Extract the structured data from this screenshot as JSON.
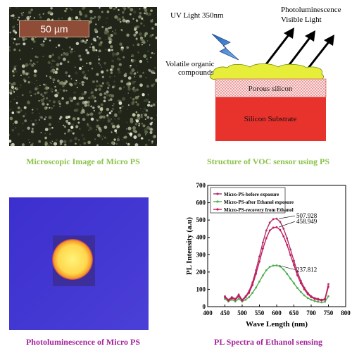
{
  "captions": {
    "micro_image": "Microscopic Image of Micro PS",
    "structure": "Structure of VOC sensor using PS",
    "photoluminescence": "Photoluminescence of Micro PS",
    "pl_spectra": "PL Spectra of Ethanol sensing"
  },
  "colors": {
    "caption_green": "#8bc34a",
    "caption_magenta": "#a3249a"
  },
  "micro_image": {
    "scale_label": "50 µm"
  },
  "structure": {
    "uv_label": "UV Light 350nm",
    "pl_label_line1": "Photoluminescence",
    "pl_label_line2": "Visible Light",
    "voc_label_line1": "Volatile organic",
    "voc_label_line2": "compounds",
    "porous_label": "Porous silicon",
    "substrate_label": "Silicon Substrate"
  },
  "chart_data": {
    "type": "line",
    "xlabel": "Wave Length (nm)",
    "ylabel": "PL Intensity (a.u)",
    "xlim": [
      400,
      800
    ],
    "ylim": [
      0,
      700
    ],
    "xticks": [
      400,
      450,
      500,
      550,
      600,
      650,
      700,
      750,
      800
    ],
    "yticks": [
      0,
      100,
      200,
      300,
      400,
      500,
      600,
      700
    ],
    "legend_position": "top-left",
    "x": [
      450,
      460,
      470,
      480,
      490,
      500,
      510,
      520,
      530,
      540,
      550,
      560,
      570,
      580,
      590,
      600,
      610,
      620,
      630,
      640,
      650,
      660,
      670,
      680,
      690,
      700,
      710,
      720,
      730,
      740,
      750
    ],
    "series": [
      {
        "name": "Micro-PS-before exposure",
        "color": "#b0306a",
        "peak_label": "507.928",
        "values": [
          60,
          40,
          55,
          45,
          70,
          40,
          60,
          90,
          140,
          210,
          290,
          370,
          440,
          485,
          505,
          508,
          490,
          450,
          395,
          330,
          265,
          200,
          150,
          110,
          80,
          60,
          50,
          45,
          40,
          45,
          130
        ]
      },
      {
        "name": "Micro-PS-after Ethanol exposure",
        "color": "#4caf50",
        "peak_label": "237.812",
        "values": [
          45,
          30,
          40,
          30,
          45,
          30,
          40,
          55,
          80,
          110,
          145,
          180,
          210,
          230,
          237,
          238,
          232,
          215,
          190,
          162,
          135,
          108,
          85,
          65,
          50,
          40,
          32,
          28,
          25,
          28,
          60
        ]
      },
      {
        "name": "Micro-PS-recovery from Ethanol",
        "color": "#c2185b",
        "peak_label": "458.949",
        "values": [
          55,
          35,
          50,
          40,
          60,
          35,
          55,
          80,
          125,
          190,
          260,
          335,
          395,
          440,
          456,
          459,
          443,
          406,
          357,
          298,
          240,
          181,
          136,
          100,
          72,
          55,
          45,
          40,
          36,
          40,
          115
        ]
      }
    ]
  }
}
